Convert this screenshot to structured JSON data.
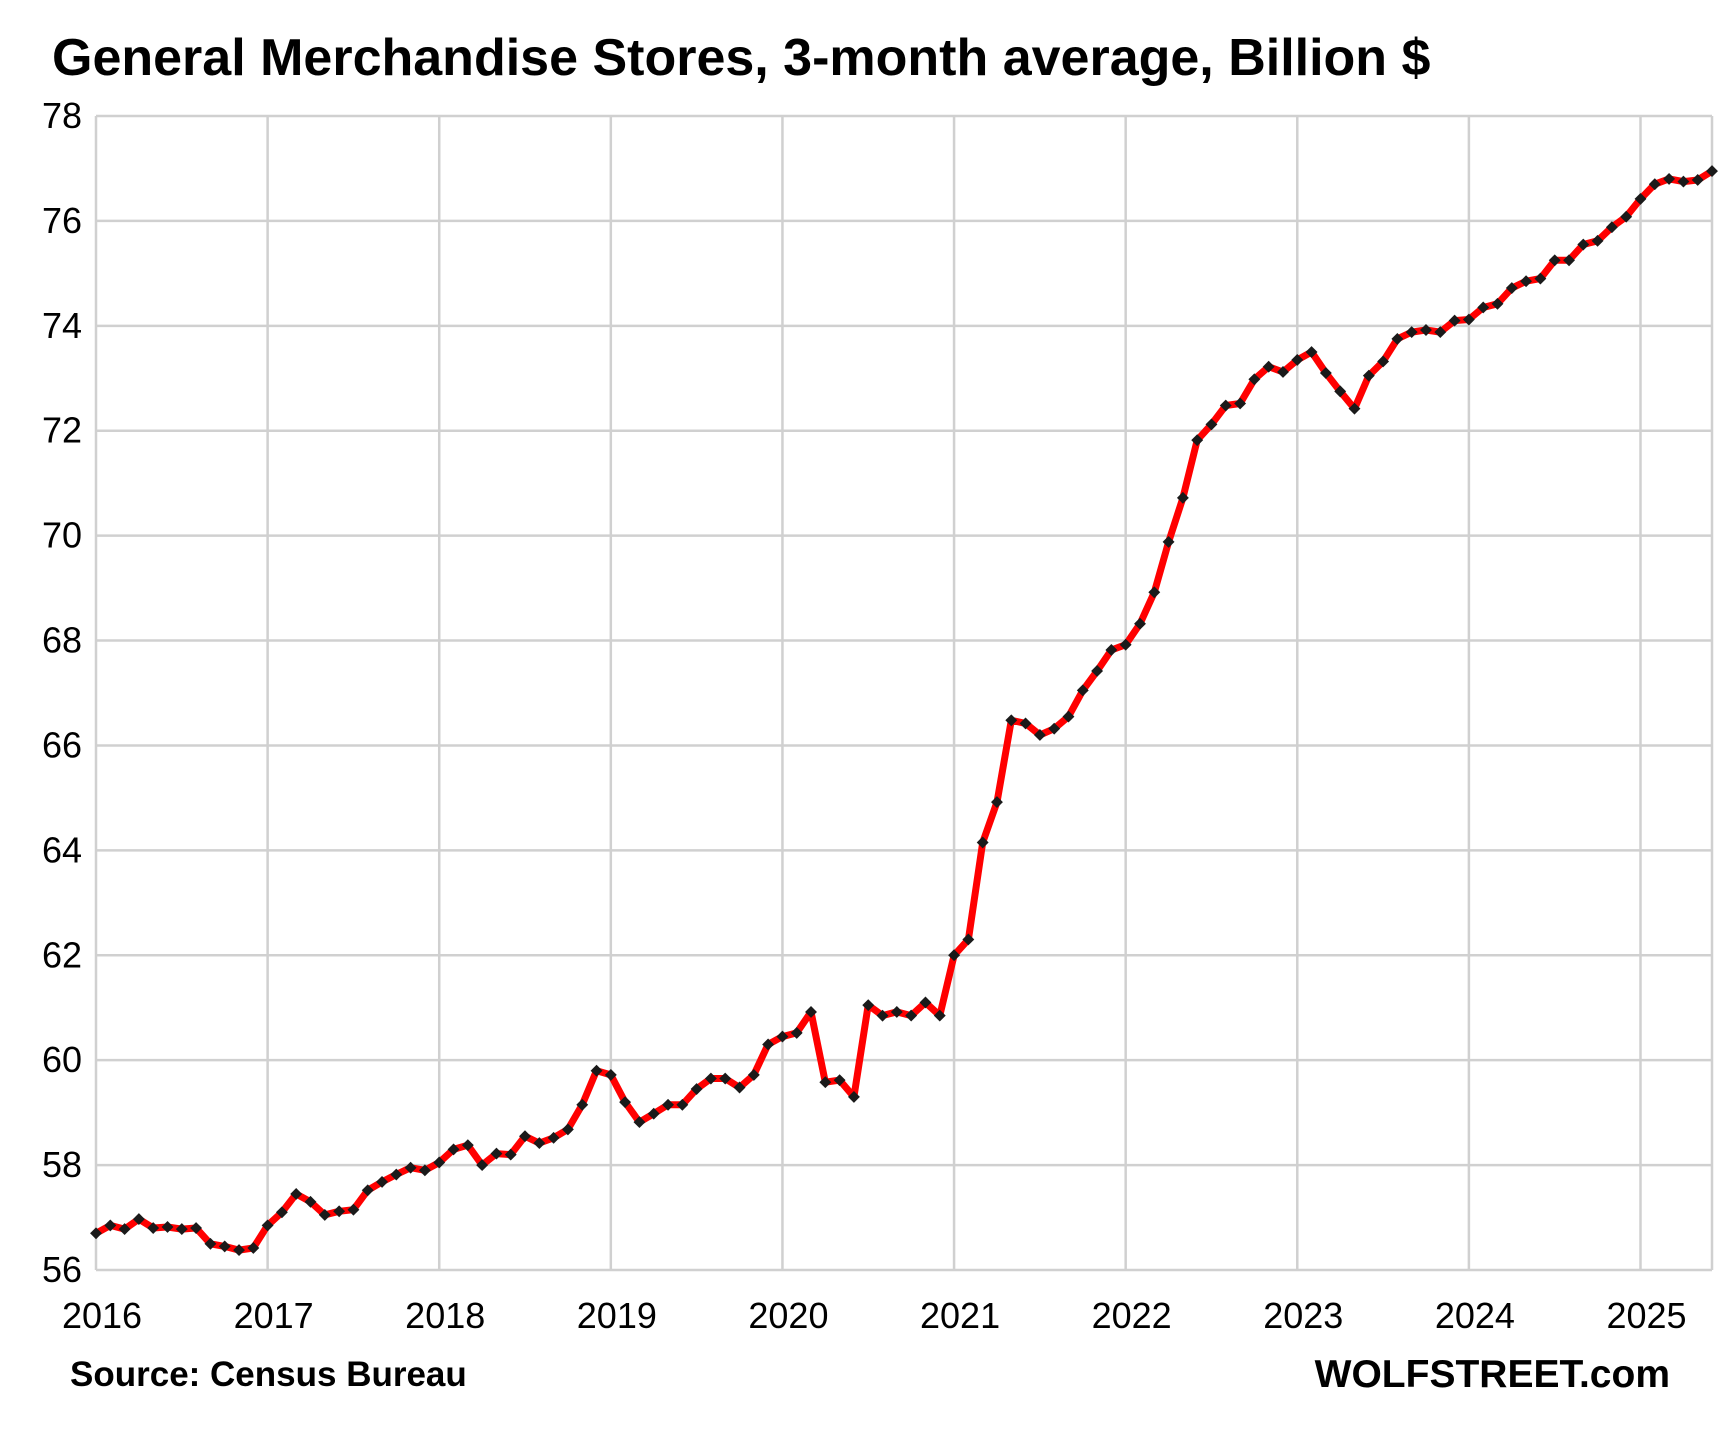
{
  "chart_data": {
    "type": "line",
    "title": "General Merchandise Stores, 3-month average, Billion $",
    "xlabel": "",
    "ylabel": "",
    "x_tick_labels": [
      "2016",
      "2017",
      "2018",
      "2019",
      "2020",
      "2021",
      "2022",
      "2023",
      "2024",
      "2025"
    ],
    "y_tick_labels": [
      "56",
      "58",
      "60",
      "62",
      "64",
      "66",
      "68",
      "70",
      "72",
      "74",
      "76",
      "78"
    ],
    "ylim": [
      56,
      78
    ],
    "xlim": [
      "2016-01",
      "2025-06"
    ],
    "grid": true,
    "legend": "none",
    "series": [
      {
        "color": "#ff0000",
        "marker_color": "#1a1a1a",
        "x": [
          "2016-01",
          "2016-02",
          "2016-03",
          "2016-04",
          "2016-05",
          "2016-06",
          "2016-07",
          "2016-08",
          "2016-09",
          "2016-10",
          "2016-11",
          "2016-12",
          "2017-01",
          "2017-02",
          "2017-03",
          "2017-04",
          "2017-05",
          "2017-06",
          "2017-07",
          "2017-08",
          "2017-09",
          "2017-10",
          "2017-11",
          "2017-12",
          "2018-01",
          "2018-02",
          "2018-03",
          "2018-04",
          "2018-05",
          "2018-06",
          "2018-07",
          "2018-08",
          "2018-09",
          "2018-10",
          "2018-11",
          "2018-12",
          "2019-01",
          "2019-02",
          "2019-03",
          "2019-04",
          "2019-05",
          "2019-06",
          "2019-07",
          "2019-08",
          "2019-09",
          "2019-10",
          "2019-11",
          "2019-12",
          "2020-01",
          "2020-02",
          "2020-03",
          "2020-04",
          "2020-05",
          "2020-06",
          "2020-07",
          "2020-08",
          "2020-09",
          "2020-10",
          "2020-11",
          "2020-12",
          "2021-01",
          "2021-02",
          "2021-03",
          "2021-04",
          "2021-05",
          "2021-06",
          "2021-07",
          "2021-08",
          "2021-09",
          "2021-10",
          "2021-11",
          "2021-12",
          "2022-01",
          "2022-02",
          "2022-03",
          "2022-04",
          "2022-05",
          "2022-06",
          "2022-07",
          "2022-08",
          "2022-09",
          "2022-10",
          "2022-11",
          "2022-12",
          "2023-01",
          "2023-02",
          "2023-03",
          "2023-04",
          "2023-05",
          "2023-06",
          "2023-07",
          "2023-08",
          "2023-09",
          "2023-10",
          "2023-11",
          "2023-12",
          "2024-01",
          "2024-02",
          "2024-03",
          "2024-04",
          "2024-05",
          "2024-06",
          "2024-07",
          "2024-08",
          "2024-09",
          "2024-10",
          "2024-11",
          "2024-12",
          "2025-01",
          "2025-02",
          "2025-03",
          "2025-04",
          "2025-05",
          "2025-06"
        ],
        "values": [
          56.7,
          56.85,
          56.78,
          56.97,
          56.8,
          56.82,
          56.78,
          56.8,
          56.5,
          56.45,
          56.38,
          56.42,
          56.85,
          57.1,
          57.45,
          57.3,
          57.05,
          57.12,
          57.15,
          57.52,
          57.68,
          57.82,
          57.95,
          57.9,
          58.05,
          58.3,
          58.38,
          58.0,
          58.22,
          58.2,
          58.55,
          58.42,
          58.52,
          58.68,
          59.15,
          59.8,
          59.72,
          59.2,
          58.82,
          58.98,
          59.15,
          59.15,
          59.45,
          59.65,
          59.65,
          59.48,
          59.72,
          60.3,
          60.45,
          60.52,
          60.92,
          59.58,
          59.62,
          59.3,
          61.05,
          60.85,
          60.92,
          60.85,
          61.1,
          60.85,
          62.0,
          62.3,
          64.15,
          64.92,
          66.48,
          66.42,
          66.2,
          66.32,
          66.55,
          67.05,
          67.42,
          67.82,
          67.92,
          68.32,
          68.92,
          69.88,
          70.72,
          71.82,
          72.12,
          72.48,
          72.52,
          72.98,
          73.22,
          73.12,
          73.35,
          73.5,
          73.1,
          72.75,
          72.42,
          73.05,
          73.32,
          73.75,
          73.88,
          73.92,
          73.88,
          74.1,
          74.12,
          74.35,
          74.42,
          74.72,
          74.85,
          74.9,
          75.25,
          75.25,
          75.55,
          75.62,
          75.88,
          76.08,
          76.42,
          76.7,
          76.8,
          76.75,
          76.78,
          76.95
        ]
      }
    ],
    "source_label": "Source: Census Bureau",
    "brand_label": "WOLFSTREET.com"
  }
}
